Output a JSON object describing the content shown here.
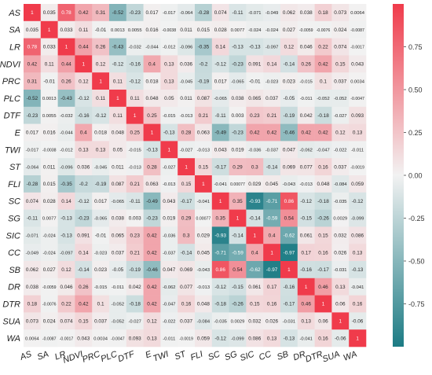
{
  "chart_data": {
    "type": "heatmap",
    "title": "",
    "xlabel": "",
    "ylabel": "",
    "categories": [
      "AS",
      "SA",
      "LR",
      "NDVI",
      "PRC",
      "PLC",
      "DTF",
      "E",
      "TWI",
      "ST",
      "FLI",
      "SC",
      "SG",
      "SIC",
      "CC",
      "SB",
      "DR",
      "DTR",
      "SUA",
      "WA"
    ],
    "matrix_text": [
      [
        "1",
        "0.035",
        "0.78",
        "0.42",
        "0.31",
        "-0.52",
        "-0.23",
        "0.017",
        "-0.017",
        "-0.064",
        "-0.28",
        "0.074",
        "-0.11",
        "-0.071",
        "-0.049",
        "0.062",
        "0.038",
        "0.18",
        "0.073",
        "0.0064"
      ],
      [
        "0.035",
        "1",
        "0.033",
        "0.11",
        "-0.01",
        "0.0013",
        "0.0055",
        "0.016",
        "-0.0038",
        "0.011",
        "0.015",
        "0.028",
        "0.0077",
        "-0.024",
        "-0.024",
        "0.027",
        "-0.0059",
        "-0.0076",
        "0.024",
        "-0.0087"
      ],
      [
        "0.78",
        "0.033",
        "1",
        "0.44",
        "0.26",
        "-0.43",
        "-0.032",
        "-0.044",
        "-0.012",
        "-0.096",
        "-0.35",
        "0.14",
        "-0.13",
        "-0.13",
        "-0.097",
        "0.12",
        "0.046",
        "0.22",
        "0.074",
        "-0.0017"
      ],
      [
        "0.42",
        "0.11",
        "0.44",
        "1",
        "0.12",
        "-0.12",
        "-0.16",
        "0.4",
        "0.13",
        "0.036",
        "-0.2",
        "-0.12",
        "-0.23",
        "0.091",
        "0.14",
        "-0.14",
        "0.26",
        "0.42",
        "0.15",
        "0.043"
      ],
      [
        "0.31",
        "-0.01",
        "0.26",
        "0.12",
        "1",
        "0.11",
        "-0.12",
        "0.018",
        "0.13",
        "-0.045",
        "-0.19",
        "0.017",
        "-0.065",
        "-0.01",
        "-0.023",
        "0.023",
        "-0.015",
        "0.1",
        "0.037",
        "0.0034"
      ],
      [
        "-0.52",
        "0.0013",
        "-0.43",
        "-0.12",
        "0.11",
        "1",
        "0.11",
        "0.048",
        "0.05",
        "0.011",
        "0.087",
        "-0.065",
        "0.038",
        "0.065",
        "0.037",
        "-0.05",
        "-0.011",
        "-0.052",
        "-0.052",
        "-0.0047"
      ],
      [
        "-0.23",
        "0.0055",
        "-0.032",
        "-0.16",
        "-0.12",
        "0.11",
        "1",
        "0.25",
        "-0.015",
        "-0.013",
        "0.21",
        "-0.11",
        "0.003",
        "0.23",
        "0.21",
        "-0.19",
        "0.042",
        "-0.18",
        "-0.027",
        "0.093"
      ],
      [
        "0.017",
        "0.016",
        "-0.044",
        "0.4",
        "0.018",
        "0.048",
        "0.25",
        "1",
        "-0.13",
        "0.28",
        "0.063",
        "-0.49",
        "-0.23",
        "0.42",
        "0.42",
        "-0.46",
        "0.42",
        "0.42",
        "0.12",
        "0.13"
      ],
      [
        "-0.017",
        "-0.0038",
        "-0.012",
        "0.13",
        "0.13",
        "0.05",
        "-0.015",
        "-0.13",
        "1",
        "-0.027",
        "-0.013",
        "0.043",
        "0.019",
        "-0.036",
        "-0.037",
        "0.047",
        "-0.062",
        "-0.047",
        "-0.022",
        "-0.011"
      ],
      [
        "-0.064",
        "0.011",
        "-0.096",
        "0.036",
        "-0.045",
        "0.011",
        "-0.013",
        "0.28",
        "-0.027",
        "1",
        "0.15",
        "-0.17",
        "0.29",
        "0.3",
        "-0.14",
        "0.069",
        "0.077",
        "0.16",
        "0.037",
        "-0.0019"
      ],
      [
        "-0.28",
        "0.015",
        "-0.35",
        "-0.2",
        "-0.19",
        "0.087",
        "0.21",
        "0.063",
        "-0.013",
        "0.15",
        "1",
        "-0.041",
        "0.00077",
        "0.029",
        "0.045",
        "-0.043",
        "-0.013",
        "0.048",
        "-0.084",
        "0.059"
      ],
      [
        "0.074",
        "0.028",
        "0.14",
        "-0.12",
        "0.017",
        "-0.065",
        "-0.11",
        "-0.49",
        "0.043",
        "-0.17",
        "-0.041",
        "1",
        "0.35",
        "-0.93",
        "-0.71",
        "0.86",
        "-0.12",
        "-0.18",
        "-0.035",
        "-0.12"
      ],
      [
        "-0.11",
        "0.0077",
        "-0.13",
        "-0.23",
        "-0.065",
        "0.038",
        "0.003",
        "-0.23",
        "0.019",
        "0.29",
        "0.00077",
        "0.35",
        "1",
        "-0.14",
        "-0.59",
        "0.54",
        "-0.15",
        "-0.26",
        "0.0029",
        "-0.099"
      ],
      [
        "-0.071",
        "-0.024",
        "-0.13",
        "0.091",
        "-0.01",
        "0.065",
        "0.23",
        "0.42",
        "-0.036",
        "0.3",
        "0.029",
        "-0.93",
        "-0.14",
        "1",
        "0.4",
        "-0.62",
        "0.061",
        "0.15",
        "0.032",
        "0.086"
      ],
      [
        "-0.049",
        "-0.024",
        "-0.097",
        "0.14",
        "-0.023",
        "0.037",
        "0.21",
        "0.42",
        "-0.037",
        "-0.14",
        "0.045",
        "-0.71",
        "-0.59",
        "0.4",
        "1",
        "-0.97",
        "0.17",
        "0.16",
        "0.026",
        "0.13"
      ],
      [
        "0.062",
        "0.027",
        "0.12",
        "-0.14",
        "0.023",
        "-0.05",
        "-0.19",
        "-0.46",
        "0.047",
        "0.069",
        "-0.043",
        "0.86",
        "0.54",
        "-0.62",
        "-0.97",
        "1",
        "-0.16",
        "-0.17",
        "-0.031",
        "-0.13"
      ],
      [
        "0.038",
        "-0.0059",
        "0.046",
        "0.26",
        "-0.015",
        "-0.011",
        "0.042",
        "0.42",
        "-0.062",
        "0.077",
        "-0.013",
        "-0.12",
        "-0.15",
        "0.061",
        "0.17",
        "-0.16",
        "1",
        "0.46",
        "0.13",
        "-0.041"
      ],
      [
        "0.18",
        "-0.0076",
        "0.22",
        "0.42",
        "0.1",
        "-0.052",
        "-0.18",
        "0.42",
        "-0.047",
        "0.16",
        "0.048",
        "-0.18",
        "-0.26",
        "0.15",
        "0.16",
        "-0.17",
        "0.46",
        "1",
        "0.06",
        "0.16"
      ],
      [
        "0.073",
        "0.024",
        "0.074",
        "0.15",
        "0.037",
        "-0.052",
        "-0.027",
        "0.12",
        "-0.022",
        "0.037",
        "-0.084",
        "-0.035",
        "0.0029",
        "0.032",
        "0.026",
        "-0.031",
        "0.13",
        "0.06",
        "1",
        "-0.06"
      ],
      [
        "0.0064",
        "-0.0087",
        "-0.0017",
        "0.043",
        "0.0034",
        "-0.0047",
        "0.093",
        "0.13",
        "-0.011",
        "-0.0019",
        "0.059",
        "-0.12",
        "-0.099",
        "0.086",
        "0.13",
        "-0.13",
        "-0.041",
        "0.16",
        "-0.06",
        "1"
      ]
    ],
    "colorbar": {
      "range": [
        -1,
        1
      ],
      "ticks": [
        "0.75",
        "0.50",
        "0.25",
        "0.00",
        "-0.25",
        "-0.50",
        "-0.75"
      ],
      "tick_values": [
        0.75,
        0.5,
        0.25,
        0,
        -0.25,
        -0.5,
        -0.75
      ],
      "low_color": "#1c7b84",
      "mid_color": "#f2f2f2",
      "high_color": "#f03b4b"
    }
  }
}
